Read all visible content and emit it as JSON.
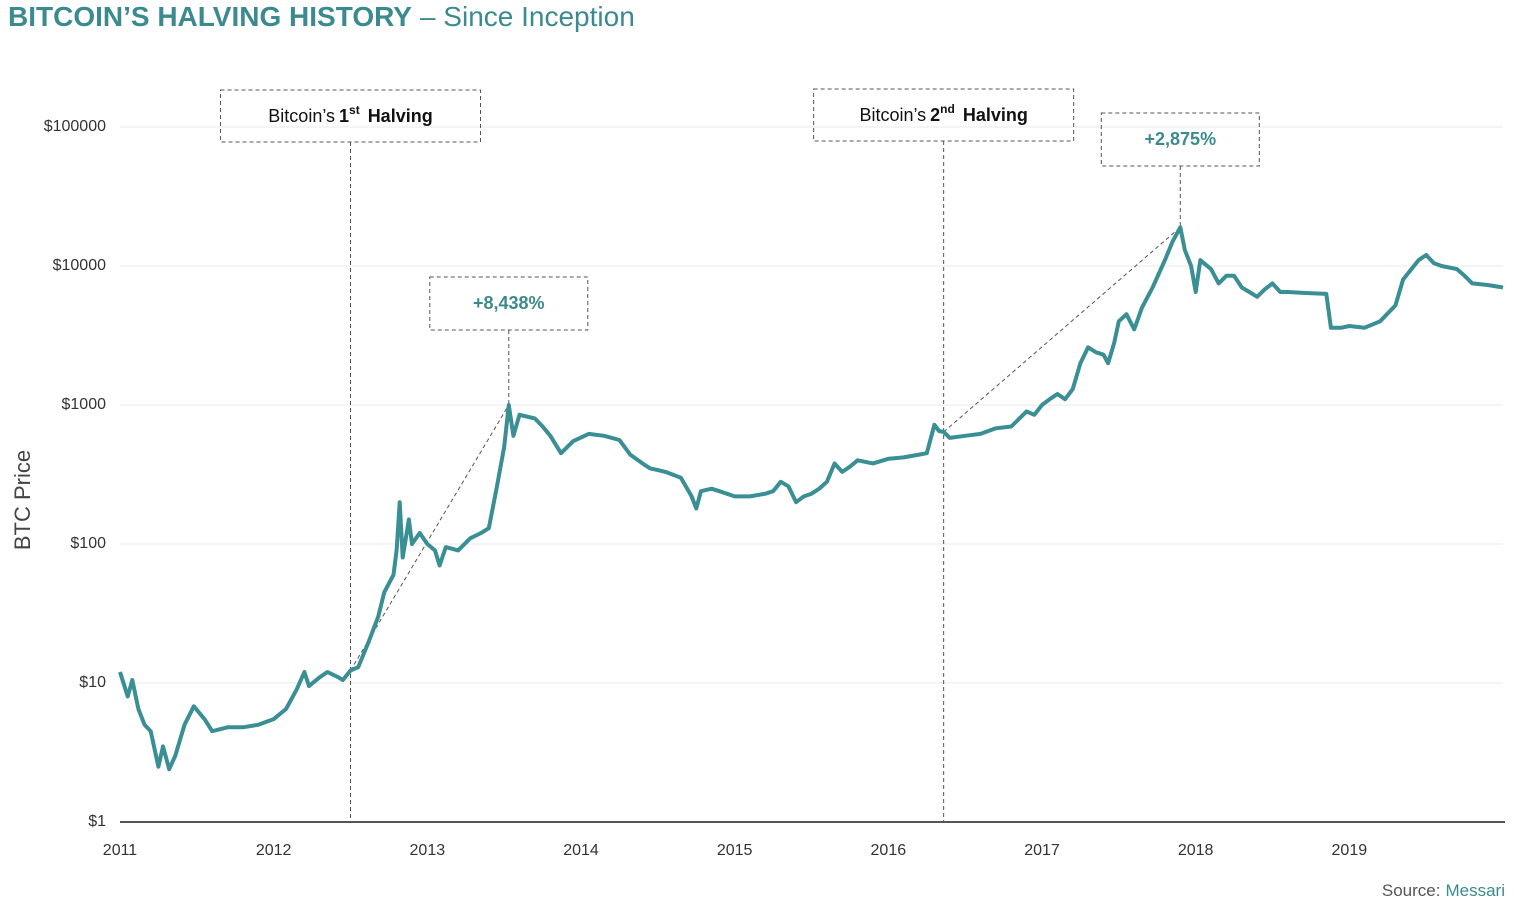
{
  "chart_data": {
    "type": "line",
    "title": "BITCOIN’S HALVING HISTORY",
    "subtitle": "– Since Inception",
    "y_label": "BTC Price",
    "source_label": "Source:",
    "source_name": "Messari",
    "log_y": true,
    "grid": true,
    "xlim": [
      2011,
      2020
    ],
    "xticks": [
      2011,
      2012,
      2013,
      2014,
      2015,
      2016,
      2017,
      2018,
      2019
    ],
    "ylim": [
      1,
      100000
    ],
    "yticks": [
      {
        "value": 1,
        "label": "$1"
      },
      {
        "value": 10,
        "label": "$10"
      },
      {
        "value": 100,
        "label": "$100"
      },
      {
        "value": 1000,
        "label": "$1000"
      },
      {
        "value": 10000,
        "label": "$10000"
      },
      {
        "value": 100000,
        "label": "$100000"
      }
    ],
    "halvings": [
      {
        "label": "Bitcoin’s",
        "number": "1",
        "suffix": "st",
        "word": "Halving",
        "x": 2012.5,
        "price": 12.3
      },
      {
        "label": "Bitcoin’s",
        "number": "2",
        "suffix": "nd",
        "word": "Halving",
        "x": 2016.36,
        "price": 640
      }
    ],
    "gains": [
      {
        "label": "+8,438%",
        "x": 2013.53,
        "price": 1000
      },
      {
        "label": "+2,875%",
        "x": 2017.9,
        "price": 19000
      }
    ],
    "series": [
      {
        "name": "BTC Price",
        "color": "#3a8f94",
        "x": [
          2011.0,
          2011.05,
          2011.08,
          2011.12,
          2011.16,
          2011.2,
          2011.25,
          2011.28,
          2011.32,
          2011.36,
          2011.42,
          2011.48,
          2011.55,
          2011.6,
          2011.7,
          2011.8,
          2011.9,
          2012.0,
          2012.08,
          2012.15,
          2012.2,
          2012.23,
          2012.3,
          2012.35,
          2012.42,
          2012.45,
          2012.5,
          2012.55,
          2012.62,
          2012.68,
          2012.72,
          2012.78,
          2012.8,
          2012.82,
          2012.84,
          2012.88,
          2012.9,
          2012.95,
          2013.0,
          2013.05,
          2013.08,
          2013.12,
          2013.2,
          2013.28,
          2013.35,
          2013.4,
          2013.45,
          2013.5,
          2013.53,
          2013.56,
          2013.6,
          2013.7,
          2013.75,
          2013.8,
          2013.87,
          2013.95,
          2014.05,
          2014.15,
          2014.25,
          2014.32,
          2014.4,
          2014.45,
          2014.5,
          2014.55,
          2014.65,
          2014.72,
          2014.75,
          2014.78,
          2014.85,
          2014.9,
          2015.0,
          2015.1,
          2015.2,
          2015.25,
          2015.3,
          2015.35,
          2015.4,
          2015.45,
          2015.5,
          2015.55,
          2015.6,
          2015.65,
          2015.7,
          2015.75,
          2015.8,
          2015.9,
          2016.0,
          2016.1,
          2016.2,
          2016.25,
          2016.3,
          2016.33,
          2016.36,
          2016.4,
          2016.5,
          2016.6,
          2016.7,
          2016.8,
          2016.9,
          2016.95,
          2017.0,
          2017.05,
          2017.1,
          2017.15,
          2017.2,
          2017.25,
          2017.3,
          2017.35,
          2017.4,
          2017.43,
          2017.47,
          2017.5,
          2017.55,
          2017.6,
          2017.65,
          2017.72,
          2017.8,
          2017.85,
          2017.9,
          2017.93,
          2017.97,
          2018.0,
          2018.03,
          2018.1,
          2018.15,
          2018.2,
          2018.25,
          2018.3,
          2018.35,
          2018.4,
          2018.45,
          2018.5,
          2018.55,
          2018.6,
          2018.7,
          2018.85,
          2018.88,
          2018.95,
          2019.0,
          2019.1,
          2019.2,
          2019.3,
          2019.35,
          2019.45,
          2019.5,
          2019.55,
          2019.6,
          2019.7,
          2019.75,
          2019.8,
          2019.9,
          2020.0
        ],
        "values": [
          12,
          8,
          10.5,
          6.5,
          5,
          4.5,
          2.5,
          3.5,
          2.4,
          3,
          5,
          6.8,
          5.5,
          4.5,
          4.8,
          4.8,
          5,
          5.5,
          6.5,
          9,
          12,
          9.5,
          11,
          12,
          11,
          10.5,
          12.3,
          13,
          20,
          30,
          45,
          60,
          90,
          200,
          80,
          150,
          100,
          120,
          100,
          90,
          70,
          95,
          90,
          110,
          120,
          130,
          250,
          500,
          1000,
          600,
          850,
          800,
          700,
          600,
          450,
          550,
          620,
          600,
          560,
          440,
          380,
          350,
          340,
          330,
          300,
          220,
          180,
          240,
          250,
          240,
          220,
          220,
          230,
          240,
          280,
          260,
          200,
          220,
          230,
          250,
          280,
          380,
          330,
          360,
          400,
          380,
          410,
          420,
          440,
          450,
          720,
          650,
          640,
          580,
          600,
          620,
          680,
          700,
          900,
          850,
          1000,
          1100,
          1200,
          1100,
          1300,
          2000,
          2600,
          2400,
          2300,
          2000,
          2800,
          4000,
          4500,
          3500,
          5000,
          7000,
          11000,
          15000,
          19000,
          13000,
          10000,
          6500,
          11000,
          9500,
          7500,
          8500,
          8500,
          7000,
          6500,
          6000,
          6800,
          7500,
          6500,
          6500,
          6400,
          6300,
          3600,
          3600,
          3700,
          3600,
          4000,
          5200,
          8000,
          11000,
          12000,
          10500,
          10000,
          9500,
          8500,
          7500,
          7300,
          7000
        ]
      }
    ]
  }
}
